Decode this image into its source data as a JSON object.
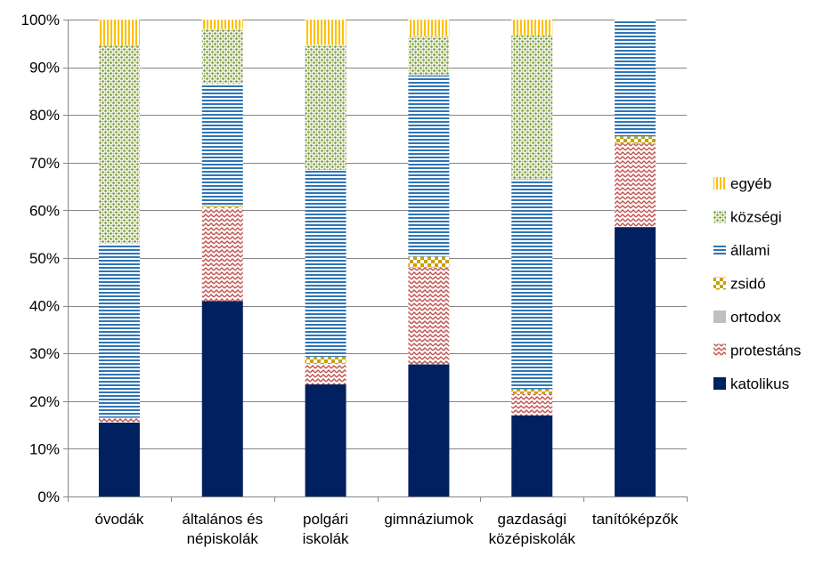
{
  "chart_data": {
    "type": "bar",
    "stacked": true,
    "percent_stacked": true,
    "categories": [
      [
        "óvodák"
      ],
      [
        "általános és",
        "népiskolák"
      ],
      [
        "polgári",
        "iskolák"
      ],
      [
        "gimnáziumok"
      ],
      [
        "gazdasági",
        "középiskolák"
      ],
      [
        "tanítóképzők"
      ]
    ],
    "y_ticks": [
      "0%",
      "10%",
      "20%",
      "30%",
      "40%",
      "50%",
      "60%",
      "70%",
      "80%",
      "90%",
      "100%"
    ],
    "ylim": [
      0,
      100
    ],
    "grid": true,
    "legend_position": "right",
    "series": [
      {
        "name": "katolikus",
        "pattern": "solid",
        "color": "#002060",
        "values": [
          15.5,
          41,
          23.5,
          27.7,
          17,
          56.5
        ]
      },
      {
        "name": "protestáns",
        "pattern": "zigzag",
        "color": "#c0504d",
        "values": [
          1,
          19.5,
          4.3,
          20.3,
          4.5,
          17.5
        ]
      },
      {
        "name": "ortodox",
        "pattern": "gray",
        "color": "#bfbfbf",
        "values": [
          0,
          0,
          0,
          0,
          0,
          0
        ]
      },
      {
        "name": "zsidó",
        "pattern": "checker",
        "color": "#c9a100",
        "values": [
          0,
          0.5,
          1.5,
          2.3,
          1,
          1.5
        ]
      },
      {
        "name": "állami",
        "pattern": "hstripe",
        "color": "#2e75b6",
        "values": [
          36.5,
          25.5,
          39.2,
          38,
          44,
          24.5
        ]
      },
      {
        "name": "községi",
        "pattern": "lattice",
        "color": "#77933c",
        "values": [
          41.5,
          11.5,
          26.2,
          8.2,
          30.2,
          0
        ]
      },
      {
        "name": "egyéb",
        "pattern": "vstripe",
        "color": "#ffc000",
        "values": [
          5.5,
          2,
          5.3,
          3.5,
          3.3,
          0
        ]
      }
    ],
    "legend_order": [
      "egyéb",
      "községi",
      "állami",
      "zsidó",
      "ortodox",
      "protestáns",
      "katolikus"
    ]
  }
}
